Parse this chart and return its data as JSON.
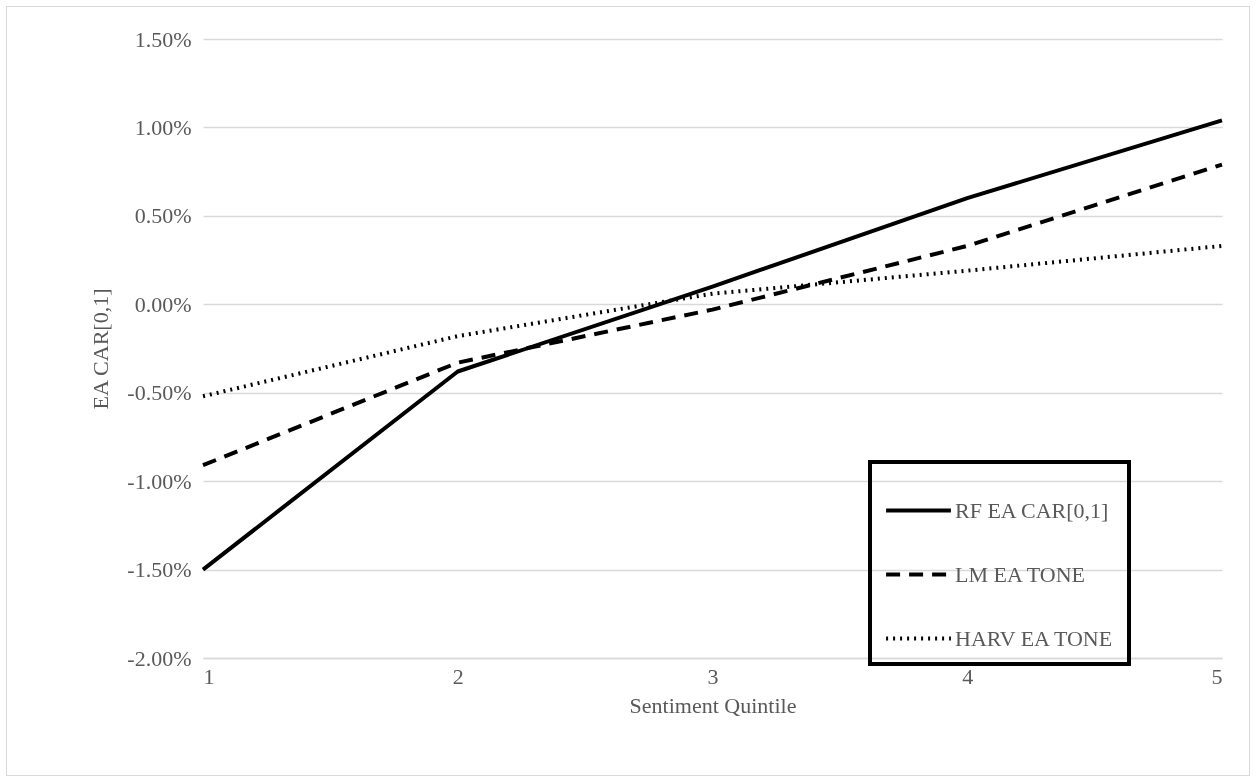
{
  "chart_data": {
    "type": "line",
    "xlabel": "Sentiment Quintile",
    "ylabel": "EA CAR[0,1]",
    "x": [
      1,
      2,
      3,
      4,
      5
    ],
    "xlim": [
      1,
      5
    ],
    "xticks": [
      1,
      2,
      3,
      4,
      5
    ],
    "ylim": [
      -0.02,
      0.015
    ],
    "yticks": [
      {
        "value": -0.02,
        "label": "-2.00%"
      },
      {
        "value": -0.015,
        "label": "-1.50%"
      },
      {
        "value": -0.01,
        "label": "-1.00%"
      },
      {
        "value": -0.005,
        "label": "-0.50%"
      },
      {
        "value": 0,
        "label": "0.00%"
      },
      {
        "value": 0.005,
        "label": "0.50%"
      },
      {
        "value": 0.01,
        "label": "1.00%"
      },
      {
        "value": 0.015,
        "label": "1.50%"
      }
    ],
    "grid": "y",
    "legend": "bottom right",
    "marker": "none",
    "series": [
      {
        "name": "RF EA CAR[0,1]",
        "color": "#000000",
        "line_style": "solid",
        "values": [
          -0.015,
          -0.0038,
          0.001,
          0.006,
          0.0104
        ]
      },
      {
        "name": "LM EA TONE",
        "color": "#000000",
        "line_style": "dashed",
        "values": [
          -0.0091,
          -0.0033,
          -0.0003,
          0.0033,
          0.0079
        ]
      },
      {
        "name": "HARV EA TONE",
        "color": "#000000",
        "line_style": "dotted",
        "values": [
          -0.0052,
          -0.0018,
          0.0006,
          0.0019,
          0.0033
        ]
      }
    ]
  }
}
